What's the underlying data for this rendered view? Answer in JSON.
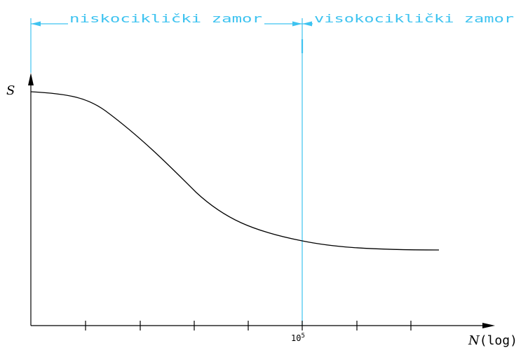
{
  "regions": {
    "low_cycle_label": "niskociklički zamor",
    "high_cycle_label": "visokociklički zamor"
  },
  "axes": {
    "y_label": "S",
    "x_label_var": "N",
    "x_label_suffix": "(log)",
    "x_marker_base": "10",
    "x_marker_exponent": "5"
  },
  "colors": {
    "region_lines": "#3ec3f0",
    "axes": "#000000",
    "curve": "#000000"
  }
}
